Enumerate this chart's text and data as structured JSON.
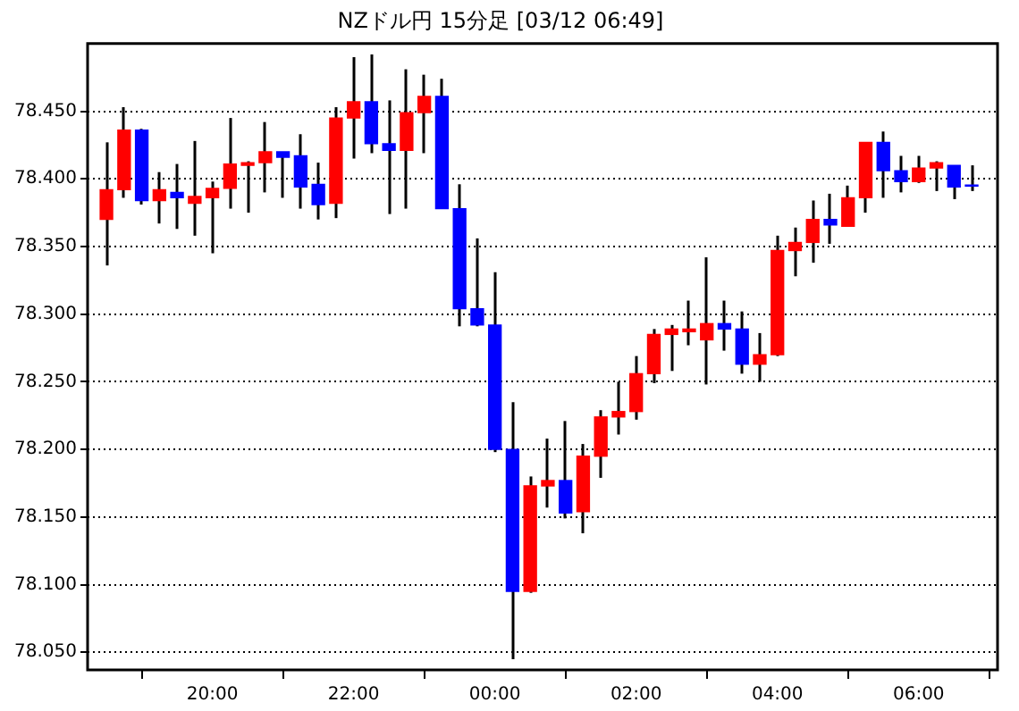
{
  "chart_data": {
    "type": "candlestick",
    "title": "NZドル円 15分足 [03/12 06:49]",
    "x": [
      "--03-11T18:30",
      "--03-11T18:45",
      "--03-11T19:00",
      "--03-11T19:15",
      "--03-11T19:30",
      "--03-11T19:45",
      "--03-11T20:00",
      "--03-11T20:15",
      "--03-11T20:30",
      "--03-11T20:45",
      "--03-11T21:00",
      "--03-11T21:15",
      "--03-11T21:30",
      "--03-11T21:45",
      "--03-11T22:00",
      "--03-11T22:15",
      "--03-11T22:30",
      "--03-11T22:45",
      "--03-11T23:00",
      "--03-11T23:15",
      "--03-11T23:30",
      "--03-11T23:45",
      "--03-12T00:00",
      "--03-12T00:15",
      "--03-12T00:30",
      "--03-12T00:45",
      "--03-12T01:00",
      "--03-12T01:15",
      "--03-12T01:30",
      "--03-12T01:45",
      "--03-12T02:00",
      "--03-12T02:15",
      "--03-12T02:30",
      "--03-12T02:45",
      "--03-12T03:00",
      "--03-12T03:15",
      "--03-12T03:30",
      "--03-12T03:45",
      "--03-12T04:00",
      "--03-12T04:15",
      "--03-12T04:30",
      "--03-12T04:45",
      "--03-12T05:00",
      "--03-12T05:15",
      "--03-12T05:30",
      "--03-12T05:45",
      "--03-12T06:00",
      "--03-12T06:15",
      "--03-12T06:30",
      "--03-12T06:45"
    ],
    "ohlc": [
      [
        78.37,
        78.427,
        78.336,
        78.392
      ],
      [
        78.392,
        78.453,
        78.386,
        78.436
      ],
      [
        78.436,
        78.437,
        78.381,
        78.384
      ],
      [
        78.384,
        78.405,
        78.367,
        78.392
      ],
      [
        78.39,
        78.411,
        78.363,
        78.386
      ],
      [
        78.382,
        78.428,
        78.358,
        78.387
      ],
      [
        78.386,
        78.398,
        78.345,
        78.393
      ],
      [
        78.393,
        78.445,
        78.378,
        78.411
      ],
      [
        78.41,
        78.413,
        78.375,
        78.412
      ],
      [
        78.412,
        78.442,
        78.39,
        78.42
      ],
      [
        78.42,
        78.42,
        78.386,
        78.416
      ],
      [
        78.417,
        78.433,
        78.378,
        78.394
      ],
      [
        78.396,
        78.412,
        78.37,
        78.381
      ],
      [
        78.382,
        78.453,
        78.371,
        78.445
      ],
      [
        78.445,
        78.49,
        78.415,
        78.457
      ],
      [
        78.457,
        78.492,
        78.419,
        78.426
      ],
      [
        78.426,
        78.458,
        78.374,
        78.421
      ],
      [
        78.421,
        78.481,
        78.378,
        78.449
      ],
      [
        78.449,
        78.477,
        78.419,
        78.461
      ],
      [
        78.461,
        78.474,
        78.378,
        78.378
      ],
      [
        78.378,
        78.396,
        78.291,
        78.304
      ],
      [
        78.304,
        78.356,
        78.291,
        78.292
      ],
      [
        78.292,
        78.331,
        78.198,
        78.2
      ],
      [
        78.2,
        78.235,
        78.045,
        78.095
      ],
      [
        78.095,
        78.18,
        78.094,
        78.173
      ],
      [
        78.173,
        78.208,
        78.157,
        78.177
      ],
      [
        78.177,
        78.221,
        78.149,
        78.153
      ],
      [
        78.154,
        78.204,
        78.138,
        78.195
      ],
      [
        78.195,
        78.229,
        78.179,
        78.224
      ],
      [
        78.224,
        78.25,
        78.211,
        78.228
      ],
      [
        78.228,
        78.269,
        78.222,
        78.256
      ],
      [
        78.256,
        78.289,
        78.249,
        78.285
      ],
      [
        78.285,
        78.292,
        78.258,
        78.289
      ],
      [
        78.287,
        78.31,
        78.277,
        78.289
      ],
      [
        78.281,
        78.342,
        78.248,
        78.293
      ],
      [
        78.293,
        78.31,
        78.273,
        78.289
      ],
      [
        78.289,
        78.302,
        78.256,
        78.263
      ],
      [
        78.263,
        78.286,
        78.25,
        78.27
      ],
      [
        78.27,
        78.358,
        78.269,
        78.347
      ],
      [
        78.347,
        78.364,
        78.328,
        78.353
      ],
      [
        78.353,
        78.384,
        78.338,
        78.37
      ],
      [
        78.37,
        78.389,
        78.352,
        78.366
      ],
      [
        78.365,
        78.395,
        78.365,
        78.386
      ],
      [
        78.386,
        78.427,
        78.375,
        78.427
      ],
      [
        78.427,
        78.435,
        78.386,
        78.406
      ],
      [
        78.406,
        78.417,
        78.39,
        78.398
      ],
      [
        78.398,
        78.417,
        78.397,
        78.408
      ],
      [
        78.408,
        78.413,
        78.391,
        78.412
      ],
      [
        78.41,
        78.41,
        78.385,
        78.394
      ],
      [
        78.395,
        78.41,
        78.391,
        78.395
      ]
    ],
    "colors": [
      "#ff0000",
      "#ff0000",
      "#0000ff",
      "#ff0000",
      "#0000ff",
      "#ff0000",
      "#ff0000",
      "#ff0000",
      "#ff0000",
      "#ff0000",
      "#0000ff",
      "#0000ff",
      "#0000ff",
      "#ff0000",
      "#ff0000",
      "#0000ff",
      "#0000ff",
      "#ff0000",
      "#ff0000",
      "#0000ff",
      "#0000ff",
      "#0000ff",
      "#0000ff",
      "#0000ff",
      "#ff0000",
      "#ff0000",
      "#0000ff",
      "#ff0000",
      "#ff0000",
      "#ff0000",
      "#ff0000",
      "#ff0000",
      "#ff0000",
      "#ff0000",
      "#ff0000",
      "#0000ff",
      "#0000ff",
      "#ff0000",
      "#ff0000",
      "#ff0000",
      "#ff0000",
      "#0000ff",
      "#ff0000",
      "#ff0000",
      "#0000ff",
      "#0000ff",
      "#ff0000",
      "#ff0000",
      "#0000ff",
      "#0000ff"
    ],
    "xlim": [
      "--03-11T18:14",
      "--03-12T07:07"
    ],
    "xticks": [
      {
        "value": "--03-11T20:00",
        "label": "20:00"
      },
      {
        "value": "--03-11T22:00",
        "label": "22:00"
      },
      {
        "value": "--03-12T00:00",
        "label": "00:00"
      },
      {
        "value": "--03-12T02:00",
        "label": "02:00"
      },
      {
        "value": "--03-12T04:00",
        "label": "04:00"
      },
      {
        "value": "--03-12T06:00",
        "label": "06:00"
      }
    ],
    "ylim": [
      78.037,
      78.5
    ],
    "yticks": [
      {
        "value": 78.05,
        "label": "78.050"
      },
      {
        "value": 78.1,
        "label": "78.100"
      },
      {
        "value": 78.15,
        "label": "78.150"
      },
      {
        "value": 78.2,
        "label": "78.200"
      },
      {
        "value": 78.25,
        "label": "78.250"
      },
      {
        "value": 78.3,
        "label": "78.300"
      },
      {
        "value": 78.35,
        "label": "78.350"
      },
      {
        "value": 78.4,
        "label": "78.400"
      },
      {
        "value": 78.45,
        "label": "78.450"
      }
    ],
    "grid": "y",
    "legend": false
  }
}
